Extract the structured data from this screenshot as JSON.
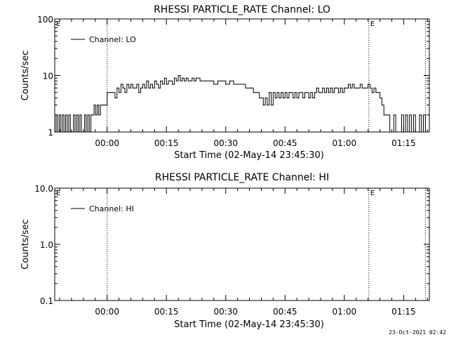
{
  "footer": {
    "timestamp": "23-Oct-2021 02:42"
  },
  "chart_data": [
    {
      "type": "line",
      "title": "RHESSI PARTICLE_RATE Channel: LO",
      "xlabel": "Start Time (02-May-14 23:45:30)",
      "ylabel": "Counts/sec",
      "yscale": "log",
      "ylim": [
        1,
        100
      ],
      "ytick_labels": [
        "1",
        "10",
        "100"
      ],
      "xlim_minutes": [
        -13.25,
        81.5
      ],
      "xtick_labels": [
        "00:00",
        "00:15",
        "00:30",
        "00:45",
        "01:00",
        "01:15"
      ],
      "vlines": [
        {
          "x": 0,
          "marker": ""
        },
        {
          "x": 66.2,
          "marker": "E"
        },
        {
          "x": 80.5,
          "marker": ""
        }
      ],
      "corner_marker": "E",
      "legend": {
        "label": "Channel: LO",
        "position": "top-left"
      },
      "series": [
        {
          "name": "Channel: LO",
          "x": [
            -13.25,
            -12.9,
            -12.5,
            -12.1,
            -11.7,
            -11.3,
            -10.9,
            -10.5,
            -10.1,
            -9.7,
            -9.3,
            -8.9,
            -8.5,
            -8.1,
            -7.7,
            -7.3,
            -6.9,
            -6.5,
            -6.1,
            -5.7,
            -5.3,
            -4.9,
            -4.5,
            -4.1,
            -3.7,
            -3.3,
            -2.9,
            -2.5,
            -2.1,
            -1.7,
            -1.3,
            -0.9,
            -0.5,
            0.0,
            0.5,
            1.0,
            1.5,
            2.0,
            2.5,
            3.0,
            3.5,
            4.0,
            4.5,
            5.0,
            5.5,
            6.0,
            6.5,
            7.0,
            7.5,
            8.0,
            8.5,
            9.0,
            9.5,
            10.0,
            10.5,
            11.0,
            11.5,
            12.0,
            12.5,
            13.0,
            13.5,
            14.0,
            14.5,
            15.0,
            15.5,
            16.0,
            16.5,
            17.0,
            17.5,
            18.0,
            18.5,
            19.0,
            19.5,
            20.0,
            20.5,
            21.0,
            21.5,
            22.0,
            22.5,
            23.0,
            23.5,
            24.0,
            25.0,
            26.0,
            27.0,
            28.0,
            29.0,
            30.0,
            31.0,
            32.0,
            33.0,
            34.0,
            35.0,
            36.0,
            36.5,
            37.0,
            37.5,
            38.0,
            38.5,
            39.0,
            39.5,
            40.0,
            40.5,
            41.0,
            41.5,
            42.0,
            42.5,
            43.0,
            43.5,
            44.0,
            44.5,
            45.0,
            45.5,
            46.0,
            46.5,
            47.0,
            47.5,
            48.0,
            48.5,
            49.0,
            49.5,
            50.0,
            50.5,
            51.0,
            51.5,
            52.0,
            52.5,
            53.0,
            53.5,
            54.0,
            54.5,
            55.0,
            55.5,
            56.0,
            56.5,
            57.0,
            57.5,
            58.0,
            58.5,
            59.0,
            59.5,
            60.0,
            60.5,
            61.0,
            61.5,
            62.0,
            62.5,
            63.0,
            63.5,
            64.0,
            64.5,
            65.0,
            65.5,
            66.0,
            66.5,
            67.0,
            67.5,
            68.0,
            68.5,
            69.0,
            69.5,
            70.0,
            70.5,
            71.0,
            71.5,
            72.0,
            72.5,
            73.0,
            73.5,
            74.0,
            74.5,
            75.0,
            75.5,
            76.0,
            76.5,
            77.0,
            77.5,
            78.0,
            78.5,
            79.0,
            79.5,
            80.0,
            80.5
          ],
          "y": [
            1,
            2,
            1,
            2,
            1,
            2,
            1,
            2,
            1,
            2,
            1,
            1,
            2,
            1,
            2,
            1,
            2,
            1,
            1,
            2,
            1,
            2,
            1,
            2,
            2,
            3,
            2,
            3,
            2,
            3,
            3,
            3,
            3,
            5,
            5,
            5,
            5,
            4,
            6,
            5,
            7,
            6,
            5,
            7,
            6,
            7,
            6,
            6,
            7,
            5,
            6,
            7,
            6,
            8,
            6,
            7,
            6,
            8,
            7,
            6,
            8,
            7,
            9,
            7,
            8,
            8,
            7,
            9,
            8,
            10,
            8,
            9,
            8,
            9,
            8,
            8,
            9,
            8,
            9,
            9,
            8,
            8,
            8,
            8,
            7,
            8,
            8,
            7,
            8,
            7,
            7,
            7,
            6,
            6,
            6,
            5,
            5,
            5,
            4,
            4,
            3,
            4,
            3,
            5,
            3,
            5,
            4,
            5,
            4,
            5,
            4,
            5,
            4,
            5,
            5,
            4,
            5,
            4,
            5,
            5,
            4,
            5,
            5,
            4,
            5,
            4,
            5,
            6,
            5,
            5,
            6,
            5,
            6,
            5,
            6,
            5,
            6,
            6,
            5,
            6,
            5,
            6,
            6,
            7,
            6,
            7,
            6,
            6,
            6,
            7,
            6,
            6,
            6,
            7,
            6,
            5,
            6,
            5,
            5,
            4,
            3,
            2,
            2,
            2,
            1,
            1,
            2,
            1,
            1,
            1,
            2,
            1,
            2,
            1,
            2,
            1,
            2,
            1,
            1,
            2,
            1,
            2,
            1
          ]
        }
      ]
    },
    {
      "type": "line",
      "title": "RHESSI PARTICLE_RATE Channel: HI",
      "xlabel": "Start Time (02-May-14 23:45:30)",
      "ylabel": "Counts/sec",
      "yscale": "log",
      "ylim": [
        0.1,
        10
      ],
      "ytick_labels": [
        "0.1",
        "1.0",
        "10.0"
      ],
      "xlim_minutes": [
        -13.25,
        81.5
      ],
      "xtick_labels": [
        "00:00",
        "00:15",
        "00:30",
        "00:45",
        "01:00",
        "01:15"
      ],
      "vlines": [
        {
          "x": 0,
          "marker": ""
        },
        {
          "x": 66.2,
          "marker": "E"
        },
        {
          "x": 80.5,
          "marker": ""
        }
      ],
      "corner_marker": "E",
      "legend": {
        "label": "Channel: HI",
        "position": "top-left"
      },
      "series": [
        {
          "name": "Channel: HI",
          "x": [],
          "y": []
        }
      ]
    }
  ]
}
